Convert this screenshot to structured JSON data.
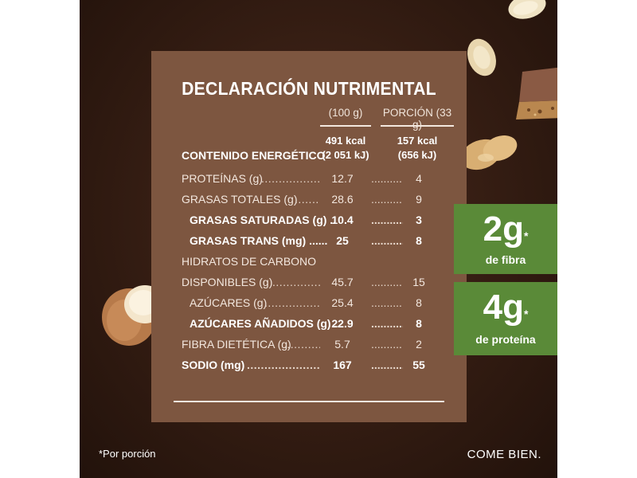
{
  "panel": {
    "title": "DECLARACIÓN NUTRIMENTAL",
    "col1_header": "(100 g)",
    "col2_header": "PORCIÓN (33 g)",
    "energy": {
      "label": "CONTENIDO ENERGÉTICO",
      "col1_kcal": "491 kcal",
      "col1_kj": "(2 051 kJ)",
      "col2_kcal": "157 kcal",
      "col2_kj": "(656 kJ)"
    },
    "rows": [
      {
        "label": "PROTEÍNAS (g)",
        "v100": "12.7",
        "vportion": "4"
      },
      {
        "label": "GRASAS TOTALES (g)",
        "v100": "28.6",
        "vportion": "9"
      },
      {
        "label": "GRASAS SATURADAS (g) ..",
        "v100": "10.4",
        "vportion": "3"
      },
      {
        "label": "GRASAS TRANS (mg) ......",
        "v100": "25",
        "vportion": "8"
      },
      {
        "label": "HIDRATOS DE CARBONO",
        "v100": "",
        "vportion": ""
      },
      {
        "label": "DISPONIBLES (g)",
        "v100": "45.7",
        "vportion": "15"
      },
      {
        "label": "AZÚCARES (g)",
        "v100": "25.4",
        "vportion": "8"
      },
      {
        "label": "AZÚCARES AÑADIDOS (g) ..",
        "v100": "22.9",
        "vportion": "8"
      },
      {
        "label": "FIBRA DIETÉTICA (g)",
        "v100": "5.7",
        "vportion": "2"
      },
      {
        "label": "SODIO (mg)",
        "v100": "167",
        "vportion": "55"
      }
    ]
  },
  "badges": [
    {
      "value": "2g",
      "mark": "*",
      "text": "de fibra"
    },
    {
      "value": "4g",
      "mark": "*",
      "text": "de proteína"
    }
  ],
  "footer": {
    "note": "*Por porción",
    "slogan": "COME BIEN."
  },
  "colors": {
    "background": "#331c12",
    "panel": "#7d5640",
    "badge_green": "#5a8a38"
  }
}
